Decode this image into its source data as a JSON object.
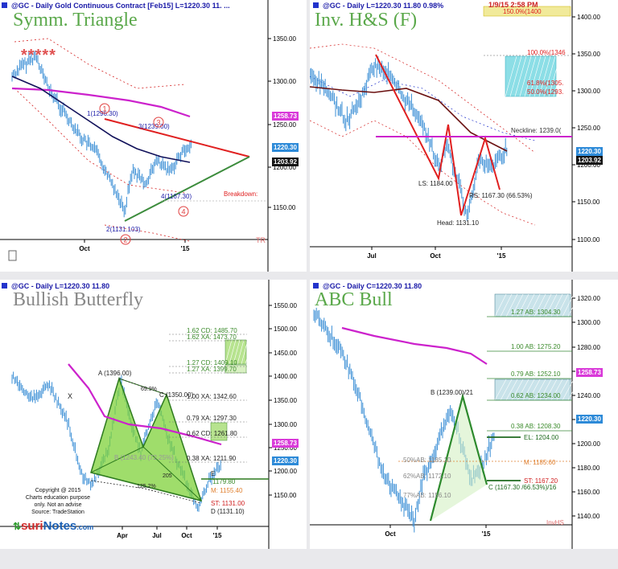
{
  "panels": {
    "tl": {
      "header": "@GC - Daily  Gold Continuous Contract [Feb15]  L=1220.30  11. ...",
      "title": "Symm. Triangle",
      "yticks": [
        "1350.00",
        "1300.00",
        "1250.00",
        "1200.00",
        "1150.00"
      ],
      "xticks": [
        "Oct",
        "'15"
      ],
      "price_tags": {
        "magenta": "1258.73",
        "blue": "1220.30",
        "dark": "1203.92"
      },
      "labels": {
        "p1": "1(1296.30)",
        "p3": "3(1239.00)",
        "p4": "4(1167.30)",
        "p2": "2(1131.103)",
        "breakdown": "Breakdown:",
        "tr": "TR",
        "c1": "1",
        "c2": "2",
        "c3": "3",
        "c4": "4",
        "stars": "*****"
      }
    },
    "tr": {
      "header": "@GC - Daily  L=1220.30  11.80  0.98%",
      "time": "1/9/15  2:58 PM",
      "title": "Inv. H&S (F)",
      "yticks": [
        "1400.00",
        "1350.00",
        "1300.00",
        "1250.00",
        "1200.00",
        "1150.00",
        "1100.00"
      ],
      "xticks": [
        "Jul",
        "Oct",
        "'15"
      ],
      "price_tags": {
        "blue": "1220.30",
        "dark": "1203.92"
      },
      "labels": {
        "fib150": "150.0%(1400",
        "fib100": "100.0%(1346",
        "fib618": "61.8%(1305.",
        "fib50": "50.0%(1293.",
        "neckline": "Neckline: 1239.0(",
        "ls": "LS: 1184.00",
        "rs": "RS: 1167.30 (66.53%)",
        "head": "Head: 1131.10"
      }
    },
    "bl": {
      "header": "@GC - Daily  L=1220.30  11.80",
      "title": "Bullish Butterfly",
      "yticks": [
        "1550.00",
        "1500.00",
        "1450.00",
        "1400.00",
        "1350.00",
        "1300.00",
        "1250.00",
        "1200.00",
        "1150.00"
      ],
      "xticks": [
        "Apr",
        "Jul",
        "Oct",
        "'15"
      ],
      "price_tags": {
        "magenta": "1258.73",
        "blue": "1220.30"
      },
      "labels": {
        "a": "A (1396.00)",
        "c": "C (1350.00)",
        "d": "D (1131.10)",
        "x": "X",
        "b": "B (1243.40 (72.25%)",
        "ret699": "69.9%",
        "ret205": "205",
        "ret1252": "125.2%",
        "cd162": "1.62 CD: 1485.70",
        "xa162": "1.62 XA: 1473.70",
        "cd127": "1.27 CD: 1409.10",
        "xa127": "1.27 XA: 1399.70",
        "xa100": "1.00 XA: 1342.60",
        "xa079": "0.79 XA: 1297.30",
        "cd062": "0.62 CD: 1261.80",
        "xa038": "0.38 XA: 1211.90",
        "e": "E",
        "e_val": "1179.80",
        "m": "M: 1155.40",
        "st": "ST: 1131.00"
      },
      "copyright": [
        "Copyright @ 2015",
        "Charts education purpose",
        "only. Not an advise",
        "Source: TradeStation"
      ],
      "logo_s": "suri",
      "logo_rest": "Notes",
      "logo_com": ".com"
    },
    "br": {
      "header": "@GC - Daily  C=1220.30  11.80",
      "title": "ABC Bull",
      "yticks": [
        "1320.00",
        "1300.00",
        "1280.00",
        "1260.00",
        "1240.00",
        "1220.00",
        "1200.00",
        "1180.00",
        "1160.00",
        "1140.00"
      ],
      "xticks": [
        "Oct",
        "'15"
      ],
      "price_tags": {
        "magenta": "1258.73",
        "blue": "1220.30"
      },
      "labels": {
        "ab127": "1.27 AB: 1304.30",
        "ab100": "1.00 AB: 1275.20",
        "ab079": "0.79 AB: 1252.10",
        "ab062": "0.62 AB: 1234.00",
        "ab038": "0.38 AB: 1208.30",
        "b": "B (1239.00)/21",
        "el": "EL: 1204.00",
        "m": "M: 1185.60",
        "st": "ST: 1167.20",
        "c": "C (1167.30 /66.53%)/16",
        "r50": "50%AB: 1185.10",
        "r62": "62%AB: 1172.10",
        "r77": "77%AB: 1156.10",
        "invhs": "InvHS"
      }
    }
  },
  "colors": {
    "up": "#3b8fd6",
    "magenta": "#cc22cc",
    "red": "#d42020",
    "green": "#3c8c3c",
    "butterfly": "#7fd23a"
  }
}
